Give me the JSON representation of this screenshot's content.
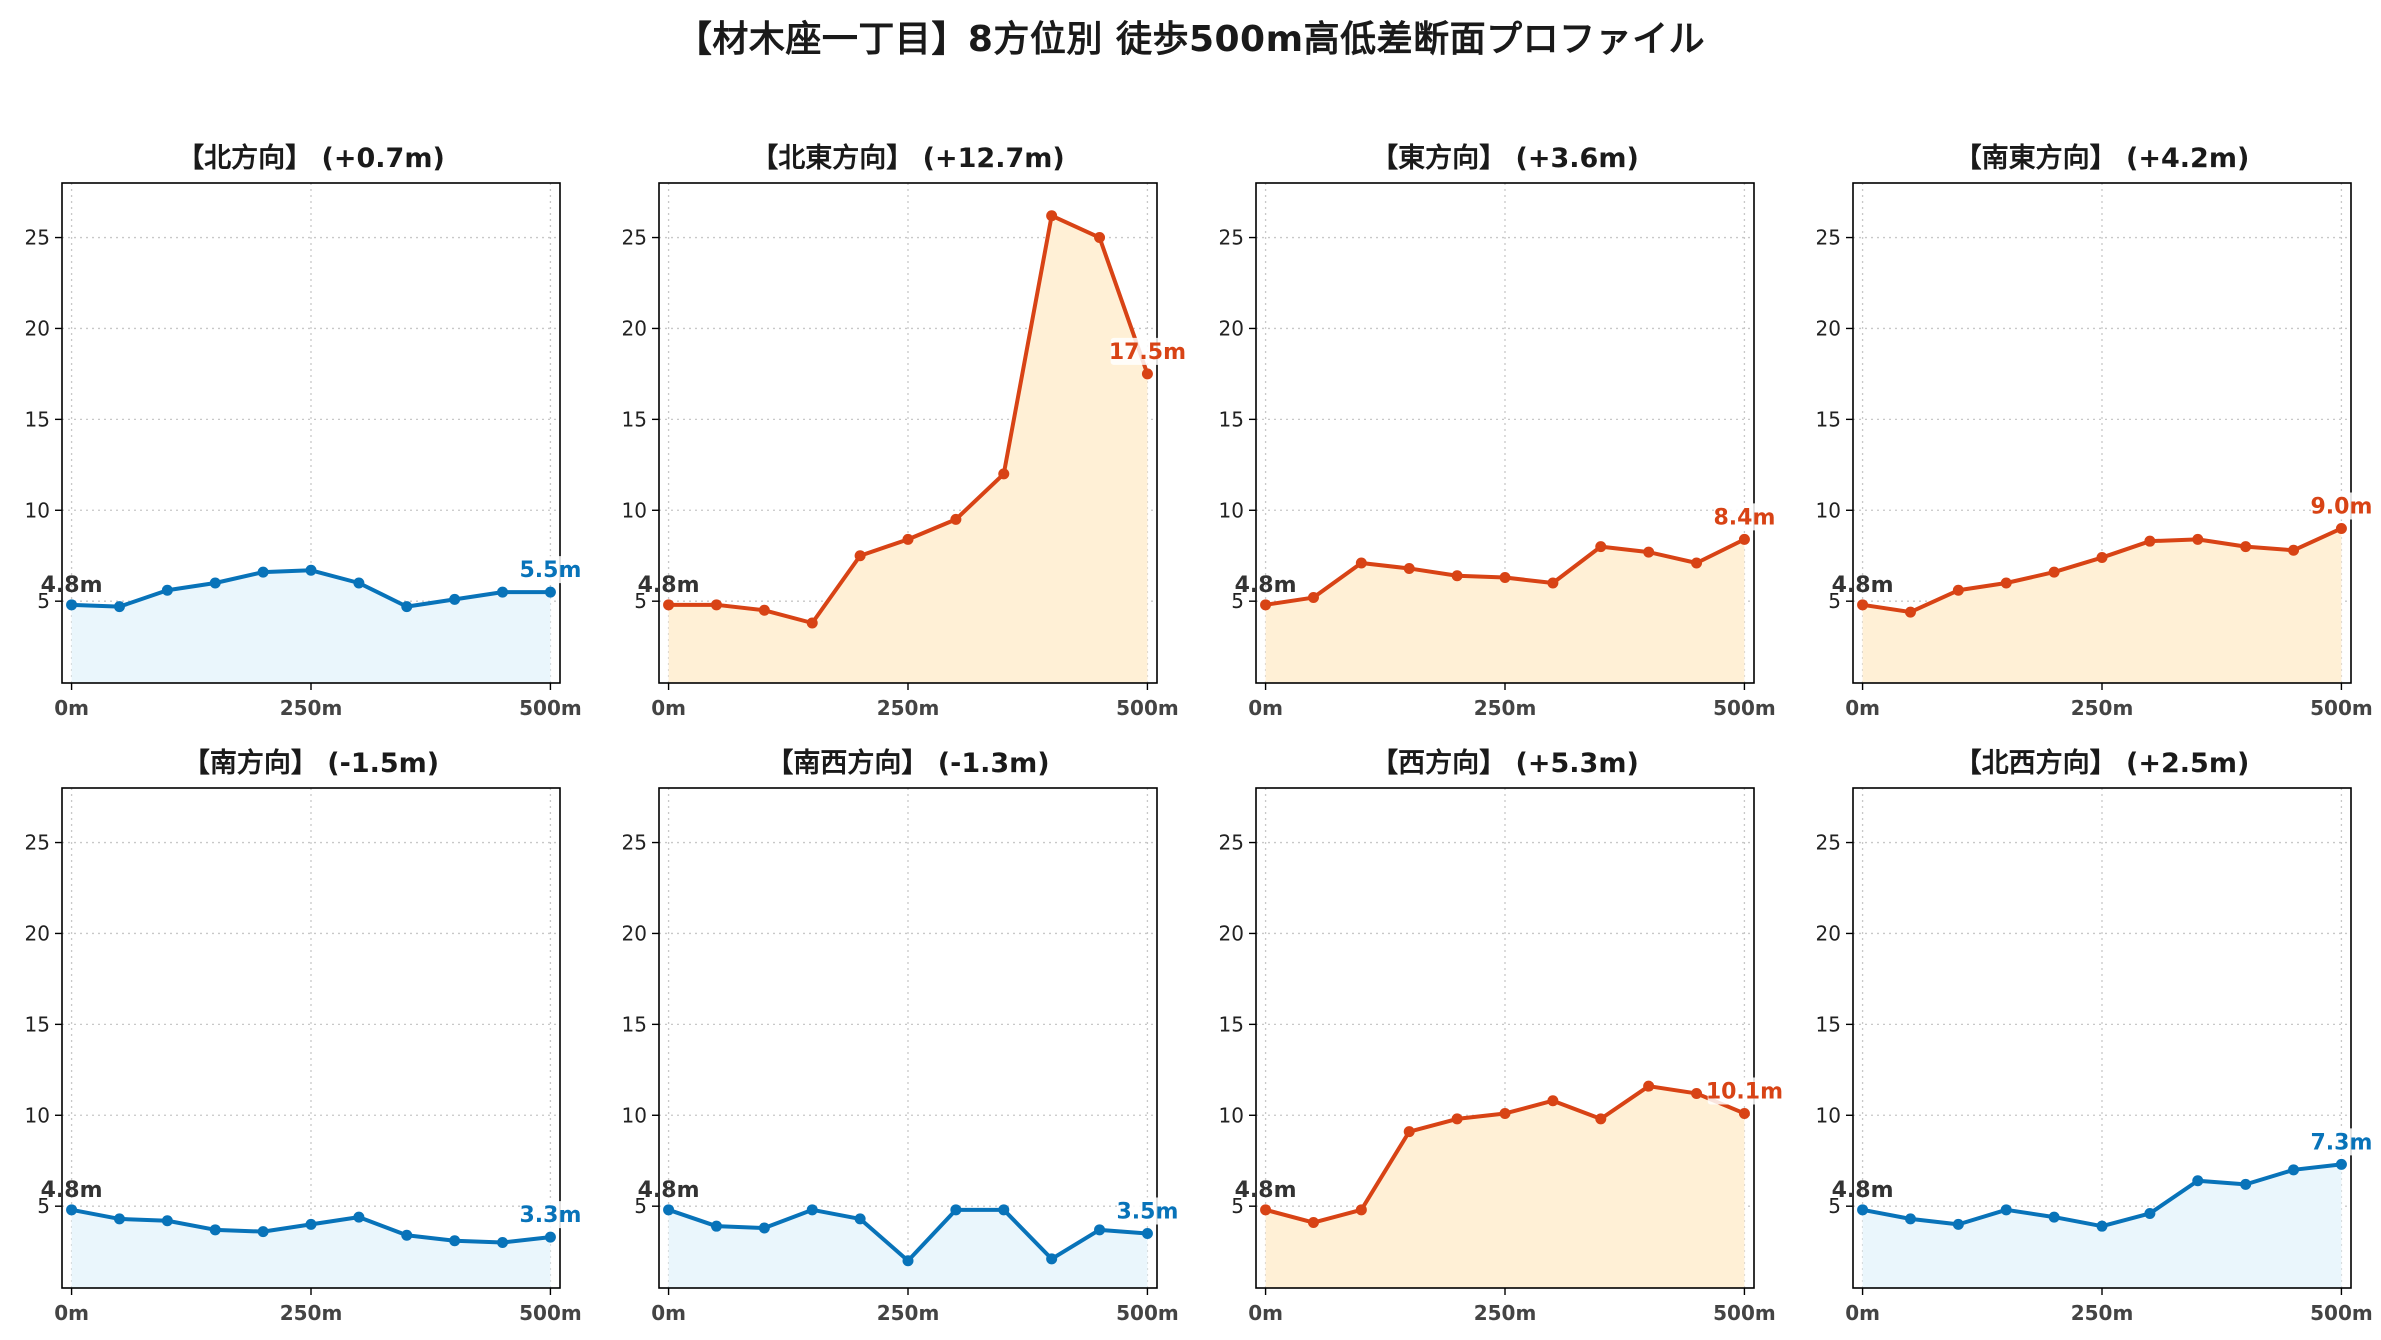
{
  "title": "【材木座一丁目】8方位別 徒歩500m高低差断面プロファイル",
  "colors": {
    "up_line": "#d84315",
    "up_fill": "#fff0d6",
    "down_line": "#0873b9",
    "down_fill": "#eaf6fc",
    "start_label": "#333333"
  },
  "chart_data": [
    {
      "type": "area",
      "title": "【北方向】 (+0.7m)",
      "trend": "down",
      "x": [
        0,
        50,
        100,
        150,
        200,
        250,
        300,
        350,
        400,
        450,
        500
      ],
      "y": [
        4.8,
        4.7,
        5.6,
        6.0,
        6.6,
        6.7,
        6.0,
        4.7,
        5.1,
        5.5,
        5.5
      ],
      "start_label": "4.8m",
      "end_label": "5.5m",
      "xticks": [
        "0m",
        "250m",
        "500m"
      ],
      "yticks": [
        5,
        10,
        15,
        20,
        25
      ],
      "ylim": [
        0.5,
        28
      ],
      "xlim": [
        -10,
        510
      ],
      "grid": true
    },
    {
      "type": "area",
      "title": "【北東方向】 (+12.7m)",
      "trend": "up",
      "x": [
        0,
        50,
        100,
        150,
        200,
        250,
        300,
        350,
        400,
        450,
        500
      ],
      "y": [
        4.8,
        4.8,
        4.5,
        3.8,
        7.5,
        8.4,
        9.5,
        12.0,
        26.2,
        25.0,
        17.5
      ],
      "start_label": "4.8m",
      "end_label": "17.5m",
      "xticks": [
        "0m",
        "250m",
        "500m"
      ],
      "yticks": [
        5,
        10,
        15,
        20,
        25
      ],
      "ylim": [
        0.5,
        28
      ],
      "xlim": [
        -10,
        510
      ],
      "grid": true
    },
    {
      "type": "area",
      "title": "【東方向】 (+3.6m)",
      "trend": "up",
      "x": [
        0,
        50,
        100,
        150,
        200,
        250,
        300,
        350,
        400,
        450,
        500
      ],
      "y": [
        4.8,
        5.2,
        7.1,
        6.8,
        6.4,
        6.3,
        6.0,
        8.0,
        7.7,
        7.1,
        8.4
      ],
      "start_label": "4.8m",
      "end_label": "8.4m",
      "xticks": [
        "0m",
        "250m",
        "500m"
      ],
      "yticks": [
        5,
        10,
        15,
        20,
        25
      ],
      "ylim": [
        0.5,
        28
      ],
      "xlim": [
        -10,
        510
      ],
      "grid": true
    },
    {
      "type": "area",
      "title": "【南東方向】 (+4.2m)",
      "trend": "up",
      "x": [
        0,
        50,
        100,
        150,
        200,
        250,
        300,
        350,
        400,
        450,
        500
      ],
      "y": [
        4.8,
        4.4,
        5.6,
        6.0,
        6.6,
        7.4,
        8.3,
        8.4,
        8.0,
        7.8,
        9.0
      ],
      "start_label": "4.8m",
      "end_label": "9.0m",
      "xticks": [
        "0m",
        "250m",
        "500m"
      ],
      "yticks": [
        5,
        10,
        15,
        20,
        25
      ],
      "ylim": [
        0.5,
        28
      ],
      "xlim": [
        -10,
        510
      ],
      "grid": true
    },
    {
      "type": "area",
      "title": "【南方向】 (-1.5m)",
      "trend": "down",
      "x": [
        0,
        50,
        100,
        150,
        200,
        250,
        300,
        350,
        400,
        450,
        500
      ],
      "y": [
        4.8,
        4.3,
        4.2,
        3.7,
        3.6,
        4.0,
        4.4,
        3.4,
        3.1,
        3.0,
        3.3
      ],
      "start_label": "4.8m",
      "end_label": "3.3m",
      "xticks": [
        "0m",
        "250m",
        "500m"
      ],
      "yticks": [
        5,
        10,
        15,
        20,
        25
      ],
      "ylim": [
        0.5,
        28
      ],
      "xlim": [
        -10,
        510
      ],
      "grid": true
    },
    {
      "type": "area",
      "title": "【南西方向】 (-1.3m)",
      "trend": "down",
      "x": [
        0,
        50,
        100,
        150,
        200,
        250,
        300,
        350,
        400,
        450,
        500
      ],
      "y": [
        4.8,
        3.9,
        3.8,
        4.8,
        4.3,
        2.0,
        4.8,
        4.8,
        2.1,
        3.7,
        3.5
      ],
      "start_label": "4.8m",
      "end_label": "3.5m",
      "xticks": [
        "0m",
        "250m",
        "500m"
      ],
      "yticks": [
        5,
        10,
        15,
        20,
        25
      ],
      "ylim": [
        0.5,
        28
      ],
      "xlim": [
        -10,
        510
      ],
      "grid": true
    },
    {
      "type": "area",
      "title": "【西方向】 (+5.3m)",
      "trend": "up",
      "x": [
        0,
        50,
        100,
        150,
        200,
        250,
        300,
        350,
        400,
        450,
        500
      ],
      "y": [
        4.8,
        4.1,
        4.8,
        9.1,
        9.8,
        10.1,
        10.8,
        9.8,
        11.6,
        11.2,
        10.1
      ],
      "start_label": "4.8m",
      "end_label": "10.1m",
      "xticks": [
        "0m",
        "250m",
        "500m"
      ],
      "yticks": [
        5,
        10,
        15,
        20,
        25
      ],
      "ylim": [
        0.5,
        28
      ],
      "xlim": [
        -10,
        510
      ],
      "grid": true
    },
    {
      "type": "area",
      "title": "【北西方向】 (+2.5m)",
      "trend": "down",
      "x": [
        0,
        50,
        100,
        150,
        200,
        250,
        300,
        350,
        400,
        450,
        500
      ],
      "y": [
        4.8,
        4.3,
        4.0,
        4.8,
        4.4,
        3.9,
        4.6,
        6.4,
        6.2,
        7.0,
        7.3
      ],
      "start_label": "4.8m",
      "end_label": "7.3m",
      "xticks": [
        "0m",
        "250m",
        "500m"
      ],
      "yticks": [
        5,
        10,
        15,
        20,
        25
      ],
      "ylim": [
        0.5,
        28
      ],
      "xlim": [
        -10,
        510
      ],
      "grid": true
    }
  ]
}
